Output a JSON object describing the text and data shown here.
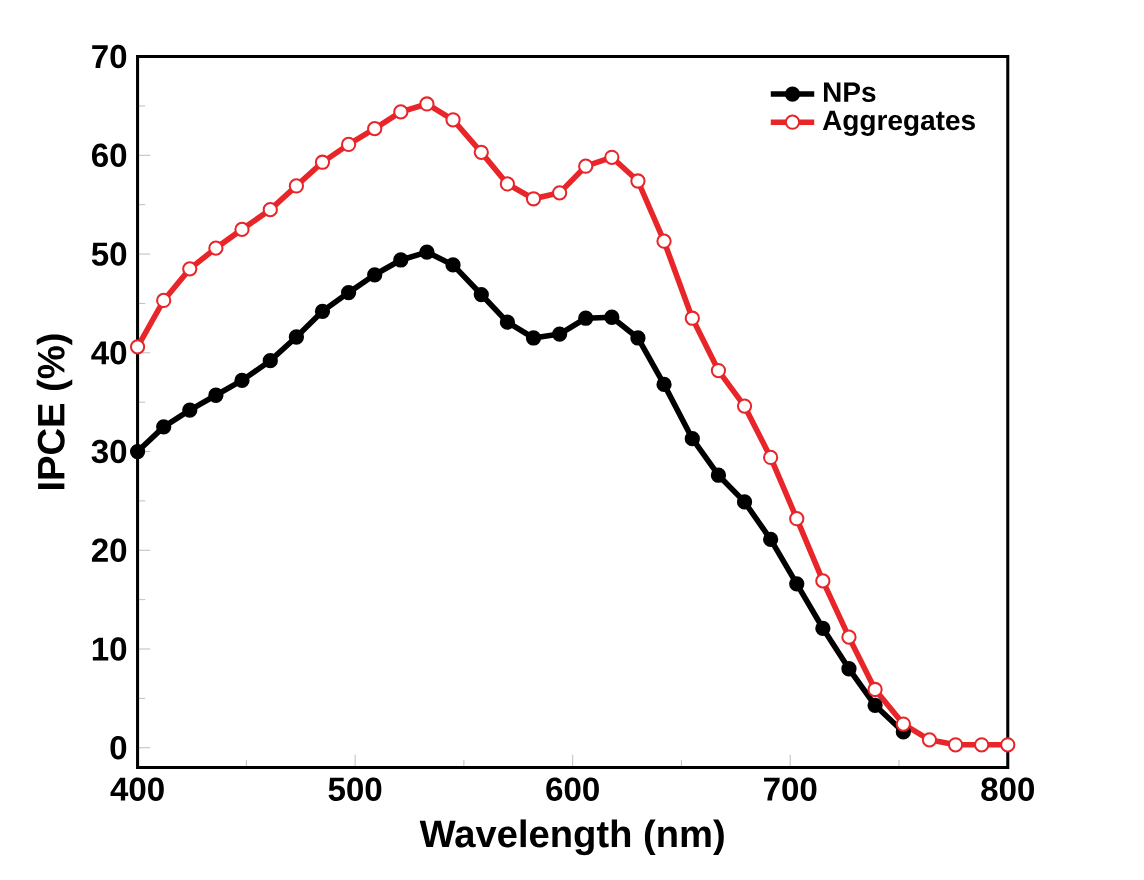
{
  "chart_data": {
    "type": "line",
    "xlabel": "Wavelength (nm)",
    "ylabel": "IPCE (%)",
    "xlim": [
      400,
      800
    ],
    "ylim": [
      -2,
      70
    ],
    "xticks": [
      400,
      500,
      600,
      700,
      800
    ],
    "yticks": [
      0,
      10,
      20,
      30,
      40,
      50,
      60,
      70
    ],
    "legend": "top right",
    "marker": "circle",
    "line_style": "solid",
    "grid": false,
    "series": [
      {
        "name": "NPs",
        "color": "#000000",
        "x": [
          400,
          412,
          424,
          436,
          448,
          461,
          473,
          485,
          497,
          509,
          521,
          533,
          545,
          558,
          570,
          582,
          594,
          606,
          618,
          630,
          642,
          655,
          667,
          679,
          691,
          703,
          715,
          727,
          739,
          752
        ],
        "values": [
          30.0,
          32.5,
          34.2,
          35.7,
          37.2,
          39.2,
          41.6,
          44.2,
          46.1,
          47.9,
          49.4,
          50.2,
          48.9,
          45.9,
          43.1,
          41.5,
          41.9,
          43.5,
          43.6,
          41.5,
          36.8,
          31.3,
          27.6,
          24.9,
          21.1,
          16.6,
          12.1,
          8.0,
          4.3,
          1.6
        ]
      },
      {
        "name": "Aggregates",
        "color": "#e8262a",
        "x": [
          400,
          412,
          424,
          436,
          448,
          461,
          473,
          485,
          497,
          509,
          521,
          533,
          545,
          558,
          570,
          582,
          594,
          606,
          618,
          630,
          642,
          655,
          667,
          679,
          691,
          703,
          715,
          727,
          739,
          752,
          764,
          776,
          788,
          800
        ],
        "values": [
          40.6,
          45.3,
          48.5,
          50.6,
          52.5,
          54.5,
          56.9,
          59.3,
          61.1,
          62.7,
          64.4,
          65.2,
          63.6,
          60.3,
          57.1,
          55.6,
          56.2,
          58.9,
          59.8,
          57.4,
          51.3,
          43.5,
          38.2,
          34.6,
          29.4,
          23.2,
          16.9,
          11.2,
          5.9,
          2.4,
          0.8,
          0.3,
          0.3,
          0.3
        ]
      }
    ]
  }
}
